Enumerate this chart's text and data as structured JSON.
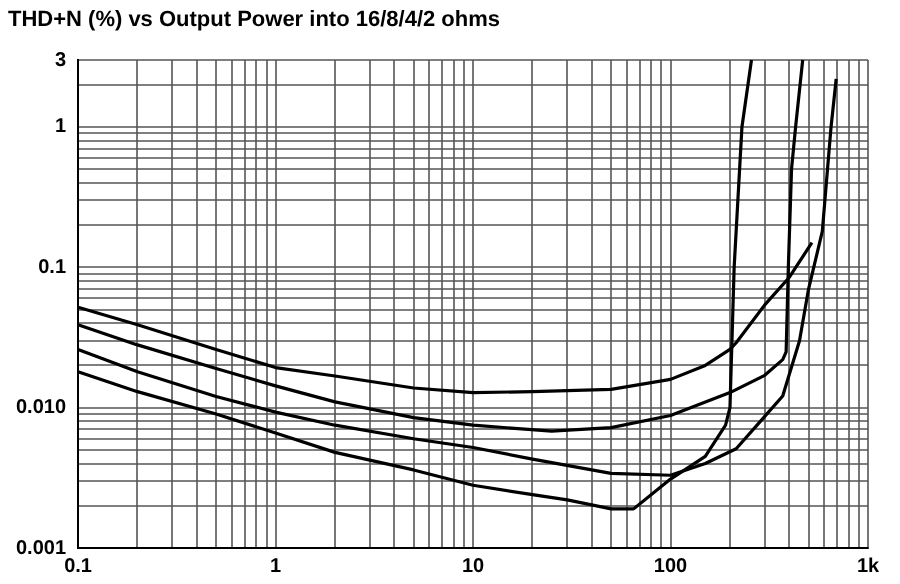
{
  "chart_data": {
    "type": "line",
    "title": "THD+N (%) vs Output Power into 16/8/4/2 ohms",
    "log": "xy",
    "grid": true,
    "legend": false,
    "marker": "none",
    "line_style": "solid",
    "xlim": [
      0.1,
      1000
    ],
    "ylim": [
      0.001,
      3
    ],
    "xticks": [
      0.1,
      {
        "value": 0.2,
        "label": null
      },
      {
        "value": 0.3,
        "label": null
      },
      {
        "value": 0.4,
        "label": null
      },
      {
        "value": 0.5,
        "label": null
      },
      {
        "value": 0.6,
        "label": null
      },
      {
        "value": 0.7,
        "label": null
      },
      {
        "value": 0.8,
        "label": null
      },
      {
        "value": 0.9,
        "label": null
      },
      1,
      {
        "value": 2,
        "label": null
      },
      {
        "value": 3,
        "label": null
      },
      {
        "value": 4,
        "label": null
      },
      {
        "value": 5,
        "label": null
      },
      {
        "value": 6,
        "label": null
      },
      {
        "value": 7,
        "label": null
      },
      {
        "value": 8,
        "label": null
      },
      {
        "value": 9,
        "label": null
      },
      10,
      {
        "value": 20,
        "label": null
      },
      {
        "value": 30,
        "label": null
      },
      {
        "value": 40,
        "label": null
      },
      {
        "value": 50,
        "label": null
      },
      {
        "value": 60,
        "label": null
      },
      {
        "value": 70,
        "label": null
      },
      {
        "value": 80,
        "label": null
      },
      {
        "value": 90,
        "label": null
      },
      100,
      {
        "value": 200,
        "label": null
      },
      {
        "value": 300,
        "label": null
      },
      {
        "value": 400,
        "label": null
      },
      {
        "value": 500,
        "label": null
      },
      {
        "value": 600,
        "label": null
      },
      {
        "value": 700,
        "label": null
      },
      {
        "value": 800,
        "label": null
      },
      {
        "value": 900,
        "label": null
      },
      {
        "value": 1000,
        "label": "1k"
      }
    ],
    "yticks": [
      0.001,
      {
        "value": 0.002,
        "label": null
      },
      {
        "value": 0.003,
        "label": null
      },
      {
        "value": 0.004,
        "label": null
      },
      {
        "value": 0.005,
        "label": null
      },
      {
        "value": 0.006,
        "label": null
      },
      {
        "value": 0.007,
        "label": null
      },
      {
        "value": 0.008,
        "label": null
      },
      {
        "value": 0.009,
        "label": null
      },
      {
        "value": 0.01,
        "label": "0.010"
      },
      {
        "value": 0.02,
        "label": null
      },
      {
        "value": 0.03,
        "label": null
      },
      {
        "value": 0.04,
        "label": null
      },
      {
        "value": 0.05,
        "label": null
      },
      {
        "value": 0.06,
        "label": null
      },
      {
        "value": 0.07,
        "label": null
      },
      {
        "value": 0.08,
        "label": null
      },
      {
        "value": 0.09,
        "label": null
      },
      0.1,
      {
        "value": 0.2,
        "label": null
      },
      {
        "value": 0.3,
        "label": null
      },
      {
        "value": 0.4,
        "label": null
      },
      {
        "value": 0.5,
        "label": null
      },
      {
        "value": 0.6,
        "label": null
      },
      {
        "value": 0.7,
        "label": null
      },
      {
        "value": 0.8,
        "label": null
      },
      {
        "value": 0.9,
        "label": null
      },
      1,
      {
        "value": 2,
        "label": null
      },
      3
    ],
    "series": [
      {
        "color": "#000000",
        "x": [
          0.1,
          0.2,
          0.5,
          1,
          2,
          5,
          10,
          20,
          50,
          100,
          150,
          200,
          215,
          300,
          400,
          520
        ],
        "values": [
          0.052,
          0.039,
          0.026,
          0.0193,
          0.0168,
          0.0138,
          0.0128,
          0.013,
          0.0135,
          0.0159,
          0.02,
          0.026,
          0.029,
          0.054,
          0.085,
          0.15
        ]
      },
      {
        "color": "#000000",
        "x": [
          0.1,
          0.2,
          0.5,
          1,
          2,
          5,
          10,
          25,
          50,
          100,
          200,
          300,
          370,
          385,
          395,
          410,
          430,
          467
        ],
        "values": [
          0.039,
          0.028,
          0.019,
          0.0143,
          0.011,
          0.0085,
          0.0075,
          0.0068,
          0.0072,
          0.0088,
          0.0128,
          0.017,
          0.022,
          0.025,
          0.1,
          0.5,
          1,
          3
        ]
      },
      {
        "color": "#000000",
        "x": [
          0.1,
          0.2,
          0.5,
          1,
          2,
          5,
          10,
          20,
          50,
          100,
          150,
          215,
          370,
          450,
          500,
          587,
          650,
          690
        ],
        "values": [
          0.026,
          0.018,
          0.012,
          0.0093,
          0.0075,
          0.006,
          0.0052,
          0.0043,
          0.0034,
          0.0033,
          0.004,
          0.0051,
          0.0121,
          0.03,
          0.07,
          0.18,
          1,
          2.2
        ]
      },
      {
        "color": "#000000",
        "x": [
          0.1,
          0.2,
          0.5,
          1,
          2,
          5,
          10,
          20,
          30,
          50,
          65,
          100,
          150,
          190,
          200,
          210,
          230,
          257
        ],
        "values": [
          0.018,
          0.013,
          0.009,
          0.0066,
          0.0048,
          0.0036,
          0.0028,
          0.0024,
          0.0022,
          0.0019,
          0.0019,
          0.0031,
          0.0045,
          0.0075,
          0.01,
          0.1,
          1,
          3
        ]
      }
    ]
  }
}
